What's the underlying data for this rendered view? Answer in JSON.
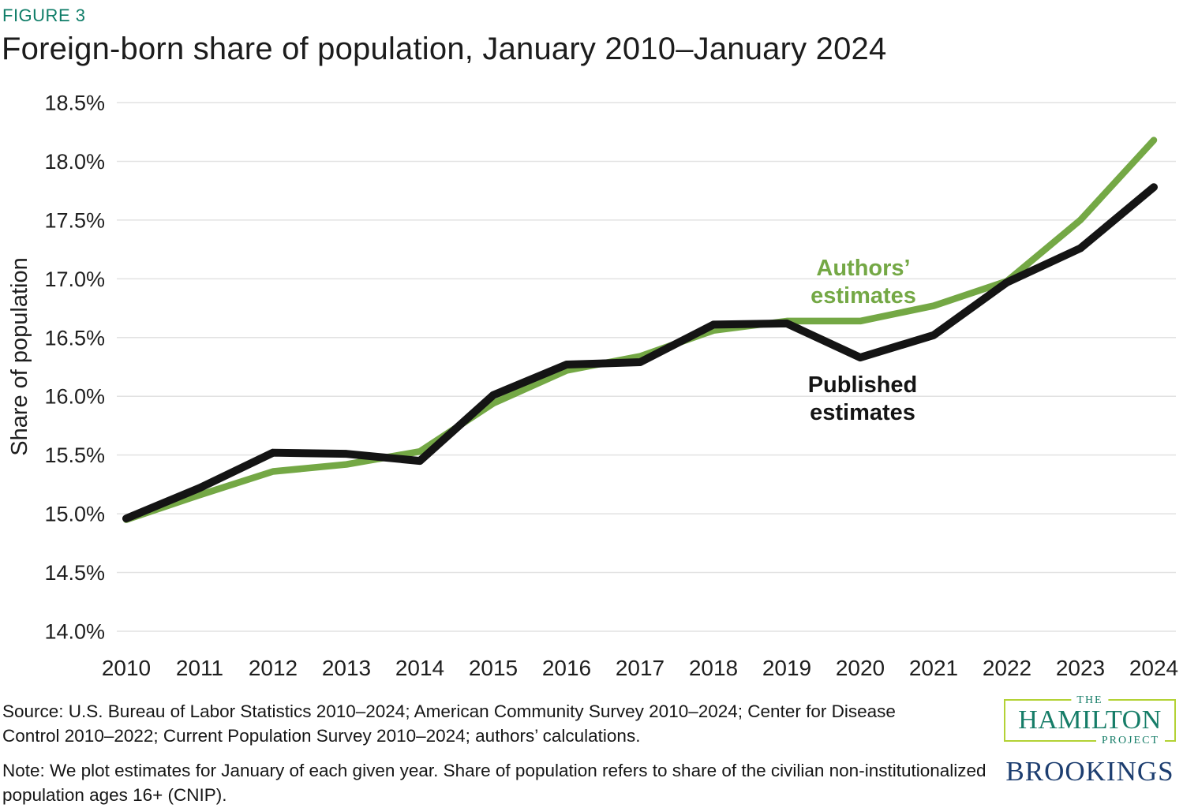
{
  "figure": {
    "label": "FIGURE 3",
    "title": "Foreign-born share of population, January 2010–January 2024"
  },
  "chart_data": {
    "type": "line",
    "title": "Foreign-born share of population, January 2010–January 2024",
    "xlabel": "",
    "ylabel": "Share of population",
    "x": [
      2010,
      2011,
      2012,
      2013,
      2014,
      2015,
      2016,
      2017,
      2018,
      2019,
      2020,
      2021,
      2022,
      2023,
      2024
    ],
    "x_tick_labels": [
      "2010",
      "2011",
      "2012",
      "2013",
      "2014",
      "2015",
      "2016",
      "2017",
      "2018",
      "2019",
      "2020",
      "2021",
      "2022",
      "2023",
      "2024"
    ],
    "y_ticks": [
      "18.5%",
      "18.0%",
      "17.5%",
      "17.0%",
      "16.5%",
      "16.0%",
      "15.5%",
      "15.0%",
      "14.5%",
      "14.0%"
    ],
    "ylim": [
      14.0,
      18.5
    ],
    "grid": "horizontal",
    "legend_position": "inline-labels",
    "series": [
      {
        "name": "Authors’ estimates",
        "color": "#74a845",
        "values": [
          14.95,
          15.16,
          15.36,
          15.42,
          15.53,
          15.94,
          16.22,
          16.34,
          16.56,
          16.64,
          16.64,
          16.77,
          16.98,
          17.5,
          18.18
        ]
      },
      {
        "name": "Published estimates",
        "color": "#141414",
        "values": [
          14.96,
          15.22,
          15.52,
          15.51,
          15.45,
          16.01,
          16.27,
          16.29,
          16.61,
          16.62,
          16.33,
          16.52,
          16.97,
          17.26,
          17.78
        ]
      }
    ],
    "annotations": [
      {
        "name": "authors-estimates-label",
        "lines": [
          "Authors’",
          "estimates"
        ],
        "color": "#74a845"
      },
      {
        "name": "published-estimates-label",
        "lines": [
          "Published",
          "estimates"
        ],
        "color": "#141414"
      }
    ]
  },
  "footer": {
    "source": "Source: U.S. Bureau of Labor Statistics 2010–2024; American Community Survey 2010–2024; Center for Disease Control 2010–2022; Current Population Survey 2010–2024; authors’ calculations.",
    "note": "Note: We plot estimates for January of each given year. Share of population refers to share of the civilian non-institutionalized population ages 16+ (CNIP).",
    "hamilton_logo": {
      "the": "THE",
      "hamilton": "HAMILTON",
      "project": "PROJECT"
    },
    "brookings": "BROOKINGS"
  },
  "colors": {
    "figure_label_teal": "#0f7d68",
    "line_green": "#74a845",
    "line_black": "#141414",
    "gridline": "#e2e2e2",
    "hamilton_teal": "#167d68",
    "hamilton_lime": "#b3d235",
    "brookings_navy": "#1d3e70"
  }
}
